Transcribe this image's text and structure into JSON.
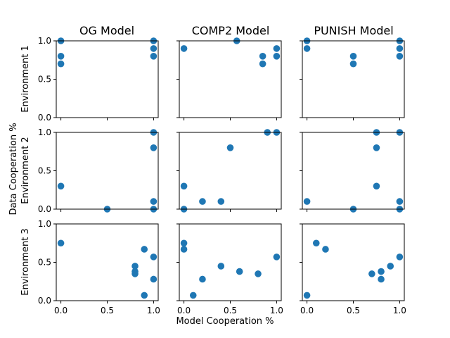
{
  "figure": {
    "xlabel": "Model Cooperation %",
    "ylabel": "Data Cooperation %",
    "marker_color": "#1f77b4"
  },
  "columns": [
    "OG Model",
    "COMP2 Model",
    "PUNISH Model"
  ],
  "rows": [
    "Environment 1",
    "Environment 2",
    "Environment 3"
  ],
  "x_ticks": [
    {
      "value": 0.0,
      "label": "0.0"
    },
    {
      "value": 0.5,
      "label": "0.5"
    },
    {
      "value": 1.0,
      "label": "1.0"
    }
  ],
  "y_ticks": [
    {
      "value": 0.0,
      "label": "0.0"
    },
    {
      "value": 0.5,
      "label": "0.5"
    },
    {
      "value": 1.0,
      "label": "1.0"
    }
  ],
  "chart_data": {
    "type": "scatter",
    "layout": "3x3 grid, shared x and y axes",
    "xlim": [
      -0.05,
      1.05
    ],
    "ylim": [
      0,
      1
    ],
    "panels": [
      {
        "row": 0,
        "col": 0,
        "points": [
          [
            0.0,
            1.0
          ],
          [
            0.0,
            0.8
          ],
          [
            0.0,
            0.7
          ],
          [
            1.0,
            1.0
          ],
          [
            1.0,
            0.9
          ],
          [
            1.0,
            0.8
          ]
        ]
      },
      {
        "row": 0,
        "col": 1,
        "points": [
          [
            0.0,
            0.9
          ],
          [
            0.57,
            1.0
          ],
          [
            0.85,
            0.8
          ],
          [
            0.85,
            0.7
          ],
          [
            1.0,
            0.9
          ],
          [
            1.0,
            0.8
          ]
        ]
      },
      {
        "row": 0,
        "col": 2,
        "points": [
          [
            0.0,
            1.0
          ],
          [
            0.0,
            0.9
          ],
          [
            0.5,
            0.8
          ],
          [
            0.5,
            0.7
          ],
          [
            1.0,
            1.0
          ],
          [
            1.0,
            0.9
          ],
          [
            1.0,
            0.8
          ]
        ]
      },
      {
        "row": 1,
        "col": 0,
        "points": [
          [
            0.0,
            0.3
          ],
          [
            0.5,
            0.0
          ],
          [
            1.0,
            1.0
          ],
          [
            1.0,
            0.8
          ],
          [
            1.0,
            0.1
          ],
          [
            1.0,
            0.0
          ]
        ]
      },
      {
        "row": 1,
        "col": 1,
        "points": [
          [
            0.0,
            0.3
          ],
          [
            0.0,
            0.0
          ],
          [
            0.2,
            0.1
          ],
          [
            0.4,
            0.1
          ],
          [
            0.5,
            0.8
          ],
          [
            0.9,
            1.0
          ],
          [
            1.0,
            1.0
          ]
        ]
      },
      {
        "row": 1,
        "col": 2,
        "points": [
          [
            0.0,
            0.1
          ],
          [
            0.5,
            0.0
          ],
          [
            0.75,
            1.0
          ],
          [
            0.75,
            0.8
          ],
          [
            0.75,
            0.3
          ],
          [
            1.0,
            1.0
          ],
          [
            1.0,
            0.1
          ],
          [
            1.0,
            0.0
          ]
        ]
      },
      {
        "row": 2,
        "col": 0,
        "points": [
          [
            0.0,
            0.75
          ],
          [
            0.8,
            0.45
          ],
          [
            0.8,
            0.38
          ],
          [
            0.8,
            0.35
          ],
          [
            0.9,
            0.67
          ],
          [
            0.9,
            0.07
          ],
          [
            1.0,
            0.57
          ],
          [
            1.0,
            0.28
          ]
        ]
      },
      {
        "row": 2,
        "col": 1,
        "points": [
          [
            0.0,
            0.75
          ],
          [
            0.0,
            0.67
          ],
          [
            0.1,
            0.07
          ],
          [
            0.2,
            0.28
          ],
          [
            0.4,
            0.45
          ],
          [
            0.6,
            0.38
          ],
          [
            0.8,
            0.35
          ],
          [
            1.0,
            0.57
          ]
        ]
      },
      {
        "row": 2,
        "col": 2,
        "points": [
          [
            0.0,
            0.07
          ],
          [
            0.1,
            0.75
          ],
          [
            0.2,
            0.67
          ],
          [
            0.7,
            0.35
          ],
          [
            0.8,
            0.38
          ],
          [
            0.8,
            0.28
          ],
          [
            0.9,
            0.45
          ],
          [
            1.0,
            0.57
          ]
        ]
      }
    ]
  }
}
